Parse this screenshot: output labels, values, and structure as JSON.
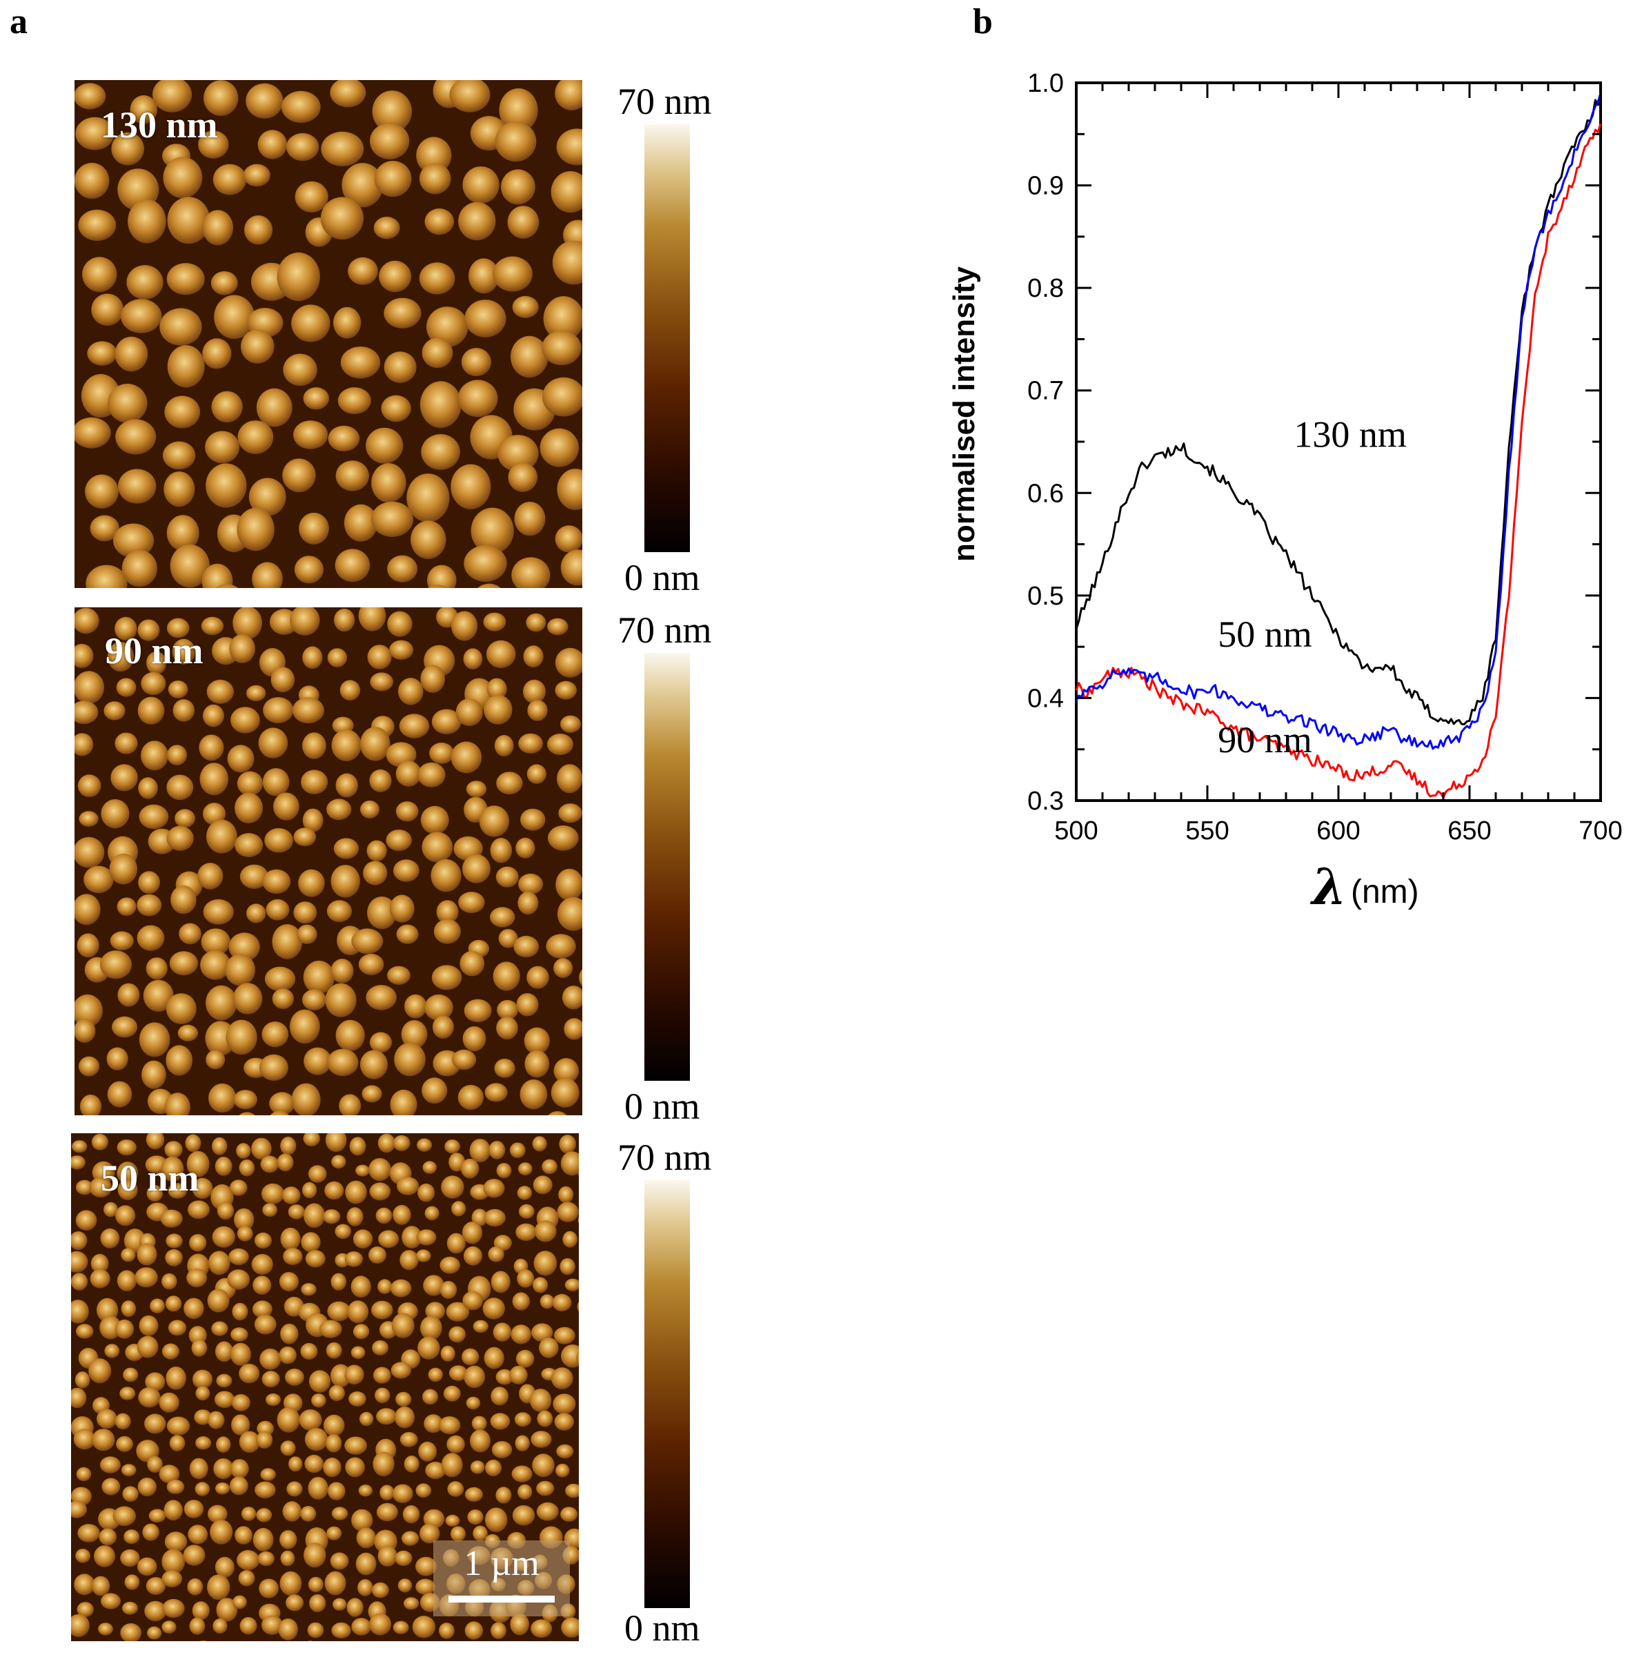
{
  "panel_a": {
    "label": "a",
    "images": [
      {
        "label": "130 nm"
      },
      {
        "label": "90 nm"
      },
      {
        "label": "50 nm"
      }
    ],
    "colorbar": {
      "max_label": "70 nm",
      "min_label": "0 nm"
    },
    "scale_bar": "1 µm"
  },
  "panel_b": {
    "label": "b"
  },
  "colors": {
    "130 nm": "#000000",
    "90 nm": "#ff0000",
    "50 nm": "#0000ff",
    "afm_background": "#3a1700",
    "afm_particle": "#c8882c"
  },
  "chart_data": {
    "type": "line",
    "title": "",
    "xlabel_symbol": "λ",
    "xlabel_unit": "(nm)",
    "ylabel": "normalised intensity",
    "xlim": [
      500,
      700
    ],
    "ylim": [
      0.3,
      1.0
    ],
    "xticks": [
      500,
      550,
      600,
      650,
      700
    ],
    "yticks": [
      0.3,
      0.4,
      0.5,
      0.6,
      0.7,
      0.8,
      0.9,
      1.0
    ],
    "ytick_labels": [
      "0.3",
      "0.4",
      "0.5",
      "0.6",
      "0.7",
      "0.8",
      "0.9",
      "1.0"
    ],
    "series": [
      {
        "name": "130 nm",
        "color": "#000000",
        "x": [
          500,
          505,
          510,
          515,
          520,
          525,
          530,
          535,
          540,
          545,
          550,
          555,
          560,
          565,
          570,
          575,
          580,
          585,
          590,
          595,
          600,
          605,
          610,
          615,
          620,
          625,
          630,
          635,
          640,
          645,
          650,
          655,
          660,
          665,
          670,
          675,
          680,
          685,
          690,
          695,
          700
        ],
        "y": [
          0.47,
          0.5,
          0.53,
          0.57,
          0.6,
          0.625,
          0.635,
          0.64,
          0.645,
          0.635,
          0.625,
          0.615,
          0.6,
          0.59,
          0.575,
          0.555,
          0.54,
          0.52,
          0.5,
          0.48,
          0.46,
          0.445,
          0.43,
          0.43,
          0.43,
          0.41,
          0.4,
          0.385,
          0.38,
          0.375,
          0.38,
          0.4,
          0.46,
          0.64,
          0.78,
          0.84,
          0.88,
          0.91,
          0.94,
          0.96,
          0.99
        ]
      },
      {
        "name": "90 nm",
        "color": "#ff0000",
        "x": [
          500,
          505,
          510,
          515,
          520,
          525,
          530,
          535,
          540,
          545,
          550,
          555,
          560,
          565,
          570,
          575,
          580,
          585,
          590,
          595,
          600,
          605,
          610,
          615,
          620,
          625,
          630,
          635,
          640,
          645,
          650,
          655,
          660,
          665,
          670,
          675,
          680,
          685,
          690,
          695,
          700
        ],
        "y": [
          0.41,
          0.405,
          0.42,
          0.425,
          0.425,
          0.42,
          0.41,
          0.4,
          0.395,
          0.39,
          0.385,
          0.38,
          0.37,
          0.365,
          0.36,
          0.355,
          0.35,
          0.345,
          0.34,
          0.335,
          0.33,
          0.325,
          0.325,
          0.33,
          0.335,
          0.33,
          0.32,
          0.31,
          0.305,
          0.315,
          0.325,
          0.34,
          0.38,
          0.5,
          0.67,
          0.79,
          0.85,
          0.88,
          0.91,
          0.94,
          0.96
        ]
      },
      {
        "name": "50 nm",
        "color": "#0000ff",
        "x": [
          500,
          505,
          510,
          515,
          520,
          525,
          530,
          535,
          540,
          545,
          550,
          555,
          560,
          565,
          570,
          575,
          580,
          585,
          590,
          595,
          600,
          605,
          610,
          615,
          620,
          625,
          630,
          635,
          640,
          645,
          650,
          655,
          660,
          665,
          670,
          675,
          680,
          685,
          690,
          695,
          700
        ],
        "y": [
          0.4,
          0.41,
          0.415,
          0.425,
          0.425,
          0.42,
          0.42,
          0.415,
          0.41,
          0.405,
          0.41,
          0.405,
          0.4,
          0.395,
          0.39,
          0.385,
          0.38,
          0.38,
          0.375,
          0.37,
          0.365,
          0.36,
          0.36,
          0.365,
          0.37,
          0.36,
          0.355,
          0.355,
          0.355,
          0.36,
          0.37,
          0.39,
          0.44,
          0.62,
          0.77,
          0.84,
          0.87,
          0.9,
          0.93,
          0.96,
          0.99
        ]
      }
    ],
    "annotations": [
      {
        "text": "130 nm",
        "x": 583,
        "y": 0.645
      },
      {
        "text": "50 nm",
        "x": 554,
        "y": 0.45
      },
      {
        "text": "90 nm",
        "x": 554,
        "y": 0.347
      }
    ]
  }
}
